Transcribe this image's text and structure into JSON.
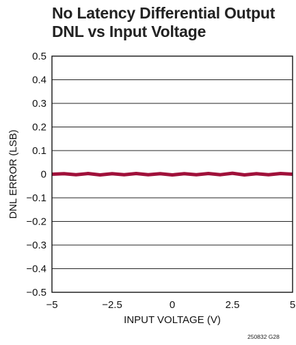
{
  "chart_data": {
    "type": "line",
    "title": [
      "No Latency Differential Output",
      "DNL vs Input Voltage"
    ],
    "xlabel": "INPUT VOLTAGE (V)",
    "ylabel": "DNL ERROR (LSB)",
    "xlim": [
      -5,
      5
    ],
    "ylim": [
      -0.5,
      0.5
    ],
    "x_ticks": [
      -5,
      -2.5,
      0,
      2.5,
      5
    ],
    "x_tick_labels": [
      "−5",
      "−2.5",
      "0",
      "2.5",
      "5"
    ],
    "y_ticks": [
      0.5,
      0.4,
      0.3,
      0.2,
      0.1,
      0,
      -0.1,
      -0.2,
      -0.3,
      -0.4,
      -0.5
    ],
    "y_tick_labels": [
      "0.5",
      "0.4",
      "0.3",
      "0.2",
      "0.1",
      "0",
      "−0.1",
      "−0.2",
      "−0.3",
      "−0.4",
      "−0.5"
    ],
    "grid": true,
    "series": [
      {
        "color": "#a0103a",
        "x": [
          -5,
          -4.5,
          -4,
          -3.5,
          -3,
          -2.5,
          -2,
          -1.5,
          -1,
          -0.5,
          0,
          0.5,
          1,
          1.5,
          2,
          2.5,
          3,
          3.5,
          4,
          4.5,
          5
        ],
        "y": [
          0,
          0.002,
          -0.002,
          0.003,
          -0.003,
          0.002,
          -0.002,
          0.003,
          -0.002,
          0.002,
          -0.003,
          0.002,
          -0.002,
          0.003,
          -0.002,
          0.004,
          -0.003,
          0.002,
          -0.002,
          0.003,
          0
        ],
        "noise_band": 0.006
      }
    ]
  },
  "figure_id": "250832 G28"
}
